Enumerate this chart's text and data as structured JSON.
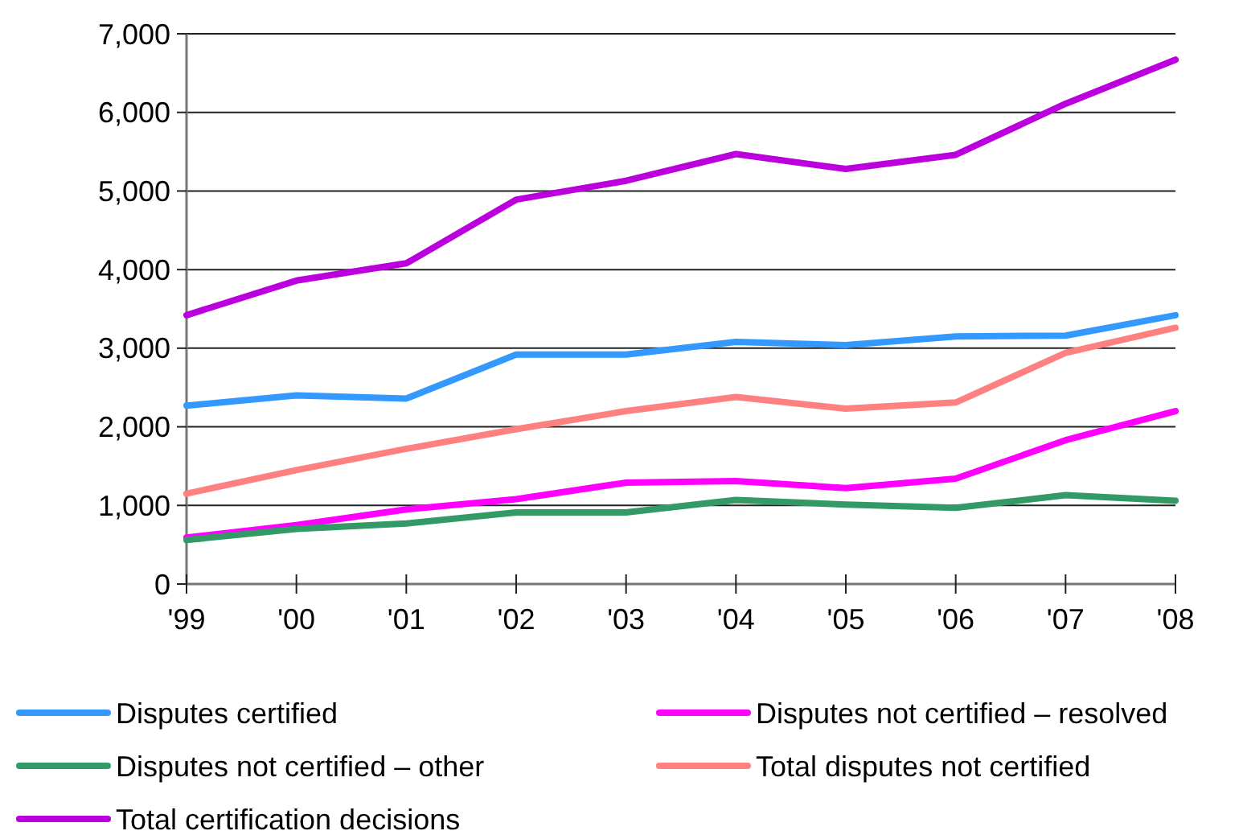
{
  "chart_data": {
    "type": "line",
    "categories": [
      "'99",
      "'00",
      "'01",
      "'02",
      "'03",
      "'04",
      "'05",
      "'06",
      "'07",
      "'08"
    ],
    "series": [
      {
        "name": "Disputes certified",
        "color": "#3399ff",
        "values": [
          2270,
          2400,
          2360,
          2920,
          2920,
          3080,
          3040,
          3150,
          3160,
          3420
        ]
      },
      {
        "name": "Disputes not certified – resolved",
        "color": "#ff00ff",
        "values": [
          590,
          750,
          950,
          1080,
          1290,
          1310,
          1220,
          1340,
          1830,
          2200
        ]
      },
      {
        "name": "Disputes not certified – other",
        "color": "#339966",
        "values": [
          560,
          700,
          770,
          910,
          910,
          1070,
          1010,
          970,
          1130,
          1060
        ]
      },
      {
        "name": "Total disputes not certified",
        "color": "#ff8080",
        "values": [
          1150,
          1450,
          1720,
          1970,
          2200,
          2380,
          2230,
          2310,
          2940,
          3260
        ]
      },
      {
        "name": "Total certification decisions",
        "color": "#bb00dd",
        "values": [
          3420,
          3860,
          4080,
          4890,
          5130,
          5470,
          5280,
          5460,
          6110,
          6670
        ]
      }
    ],
    "ylim": [
      0,
      7000
    ],
    "yticks": [
      {
        "value": 0,
        "label": "0"
      },
      {
        "value": 1000,
        "label": "1,000"
      },
      {
        "value": 2000,
        "label": "2,000"
      },
      {
        "value": 3000,
        "label": "3,000"
      },
      {
        "value": 4000,
        "label": "4,000"
      },
      {
        "value": 5000,
        "label": "5,000"
      },
      {
        "value": 6000,
        "label": "6,000"
      },
      {
        "value": 7000,
        "label": "7,000"
      }
    ],
    "grid": "y",
    "legend": "bottom",
    "marker": "none",
    "line_style": "solid"
  }
}
